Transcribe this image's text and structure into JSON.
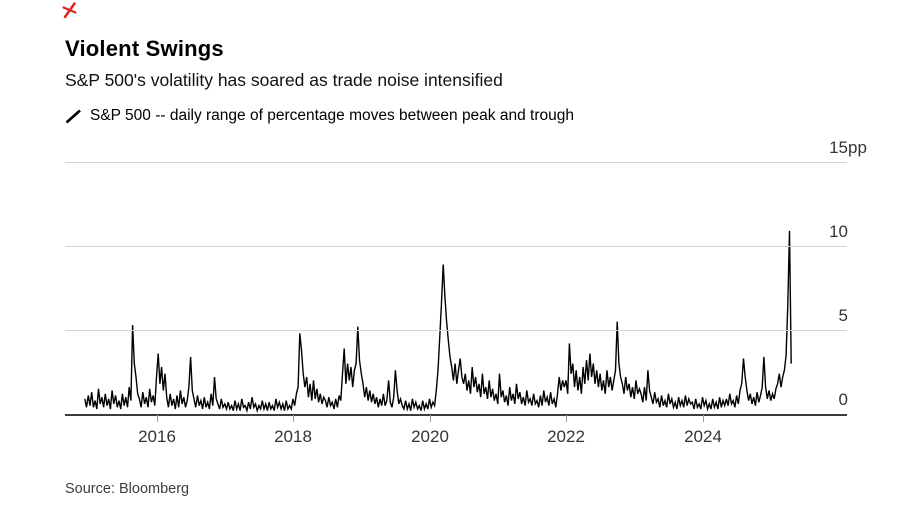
{
  "header": {
    "title": "Violent Swings",
    "subtitle": "S&P 500's volatility has soared as trade noise intensified",
    "legend_label": "S&P 500 -- daily range of percentage moves between peak and trough"
  },
  "footer": {
    "source": "Source: Bloomberg"
  },
  "colors": {
    "background": "#ffffff",
    "series": "#000000",
    "grid": "#d4d4d4",
    "axis_baseline": "#3c3c3c",
    "tick": "#9b9b9b",
    "axis_label": "#33353b",
    "accent_red": "#e0231c"
  },
  "icons": {
    "legend_marker": "diagonal-slash-icon",
    "top_left": "red-annotation-mark"
  },
  "chart_data": {
    "type": "line",
    "title": "Violent Swings",
    "subtitle": "S&P 500's volatility has soared as trade noise intensified",
    "legend_entries": [
      "S&P 500 -- daily range of percentage moves between peak and trough"
    ],
    "legend_position": "top-left",
    "source": "Source: Bloomberg",
    "grid": "horizontal-only",
    "ylabel": "percentage points (pp)",
    "y_unit_suffix": "pp",
    "y_ticks": [
      0,
      5,
      10,
      15
    ],
    "y_top_tick_label": "15pp",
    "ylim": [
      0,
      15
    ],
    "x_ticks": [
      2016,
      2018,
      2020,
      2022,
      2024
    ],
    "xlim": [
      2014.95,
      2025.3
    ],
    "series": [
      {
        "name": "S&P 500 daily range of percentage moves between peak and trough",
        "color": "#000000",
        "x_start": 2014.95,
        "x_step": 0.025,
        "values": [
          0.9,
          0.4,
          1.1,
          0.5,
          1.3,
          0.4,
          0.8,
          0.3,
          1.5,
          0.6,
          1.0,
          0.4,
          1.2,
          0.5,
          0.9,
          0.3,
          1.4,
          0.6,
          1.1,
          0.4,
          0.8,
          0.3,
          1.2,
          0.5,
          1.0,
          0.4,
          1.6,
          0.8,
          5.3,
          3.0,
          2.2,
          1.2,
          0.9,
          0.4,
          1.3,
          0.6,
          1.0,
          0.4,
          1.5,
          0.7,
          1.1,
          0.5,
          2.2,
          3.6,
          1.8,
          2.8,
          1.4,
          2.4,
          1.0,
          0.4,
          1.2,
          0.5,
          0.9,
          0.3,
          1.1,
          0.4,
          1.4,
          0.6,
          1.0,
          0.4,
          0.8,
          1.6,
          3.4,
          1.4,
          0.9,
          0.4,
          1.1,
          0.5,
          0.8,
          0.3,
          1.0,
          0.4,
          0.7,
          0.3,
          1.2,
          0.5,
          2.2,
          0.9,
          0.6,
          0.3,
          0.9,
          0.4,
          0.6,
          0.3,
          0.7,
          0.3,
          0.5,
          0.2,
          0.8,
          0.3,
          0.6,
          0.2,
          0.9,
          0.4,
          0.5,
          0.2,
          0.7,
          0.3,
          1.0,
          0.4,
          0.6,
          0.2,
          0.5,
          0.3,
          0.8,
          0.3,
          0.6,
          0.2,
          0.7,
          0.3,
          0.5,
          0.2,
          0.9,
          0.4,
          0.7,
          0.3,
          0.6,
          0.2,
          0.8,
          0.3,
          0.5,
          0.3,
          0.9,
          0.5,
          1.2,
          1.6,
          4.8,
          3.8,
          2.4,
          1.6,
          2.2,
          1.0,
          1.8,
          0.8,
          2.0,
          0.9,
          1.5,
          0.7,
          1.2,
          0.6,
          1.0,
          0.8,
          0.4,
          1.0,
          0.5,
          0.7,
          0.3,
          0.9,
          0.4,
          1.1,
          0.8,
          2.4,
          3.9,
          1.8,
          3.0,
          2.0,
          2.8,
          1.6,
          2.6,
          3.0,
          5.2,
          3.2,
          2.4,
          1.8,
          1.0,
          1.6,
          0.8,
          1.4,
          0.7,
          1.2,
          0.6,
          1.0,
          0.4,
          0.9,
          0.5,
          1.2,
          0.5,
          0.8,
          2.0,
          0.7,
          0.4,
          1.0,
          2.6,
          1.4,
          0.6,
          0.9,
          0.5,
          0.3,
          0.8,
          0.3,
          0.6,
          0.2,
          0.9,
          0.4,
          0.7,
          0.3,
          0.5,
          0.2,
          0.8,
          0.3,
          0.6,
          0.3,
          0.9,
          0.4,
          0.7,
          0.5,
          1.4,
          2.6,
          4.5,
          6.5,
          8.9,
          7.0,
          5.5,
          4.4,
          3.4,
          2.8,
          2.0,
          3.0,
          1.8,
          2.6,
          3.3,
          2.2,
          1.8,
          2.4,
          1.4,
          2.0,
          1.2,
          2.8,
          1.6,
          2.2,
          1.3,
          1.8,
          1.0,
          2.4,
          1.2,
          1.6,
          0.9,
          2.0,
          1.0,
          1.5,
          0.8,
          1.2,
          0.6,
          2.4,
          1.0,
          1.4,
          0.7,
          1.1,
          0.5,
          1.6,
          0.8,
          1.2,
          0.6,
          1.8,
          0.9,
          1.3,
          0.6,
          1.0,
          0.5,
          1.4,
          0.7,
          0.9,
          0.5,
          1.2,
          0.6,
          0.8,
          0.4,
          1.1,
          0.5,
          1.4,
          0.7,
          1.0,
          0.5,
          1.3,
          0.6,
          0.9,
          0.4,
          1.2,
          2.2,
          1.4,
          2.0,
          1.6,
          2.0,
          1.2,
          4.2,
          2.4,
          3.0,
          1.6,
          2.6,
          1.4,
          2.2,
          1.2,
          2.8,
          1.8,
          3.2,
          2.0,
          3.6,
          2.2,
          3.0,
          1.8,
          2.6,
          1.6,
          2.4,
          1.4,
          2.0,
          1.2,
          2.6,
          1.6,
          2.2,
          1.4,
          2.0,
          2.6,
          5.5,
          3.0,
          2.2,
          1.8,
          1.2,
          2.2,
          1.4,
          1.8,
          1.0,
          1.6,
          0.9,
          2.0,
          1.2,
          1.5,
          1.2,
          0.7,
          1.6,
          0.8,
          2.6,
          1.4,
          1.0,
          0.6,
          1.3,
          0.7,
          0.9,
          0.4,
          1.1,
          0.5,
          0.8,
          0.4,
          1.2,
          0.6,
          0.9,
          0.4,
          0.7,
          0.3,
          1.0,
          0.5,
          0.8,
          0.4,
          1.1,
          0.5,
          0.9,
          0.6,
          0.7,
          0.3,
          0.9,
          0.4,
          0.6,
          0.3,
          1.0,
          0.5,
          0.8,
          0.3,
          0.6,
          0.3,
          0.9,
          0.4,
          0.7,
          0.3,
          1.0,
          0.4,
          0.8,
          0.5,
          0.9,
          0.5,
          1.2,
          0.6,
          0.8,
          0.4,
          1.1,
          0.6,
          1.4,
          1.8,
          3.3,
          2.2,
          1.4,
          0.8,
          1.2,
          0.6,
          1.0,
          0.5,
          1.3,
          0.7,
          1.1,
          1.6,
          3.4,
          1.6,
          0.9,
          1.4,
          0.8,
          1.2,
          0.9,
          1.5,
          1.8,
          2.4,
          1.6,
          2.2,
          2.6,
          3.5,
          6.5,
          10.9,
          3.0
        ]
      }
    ]
  }
}
